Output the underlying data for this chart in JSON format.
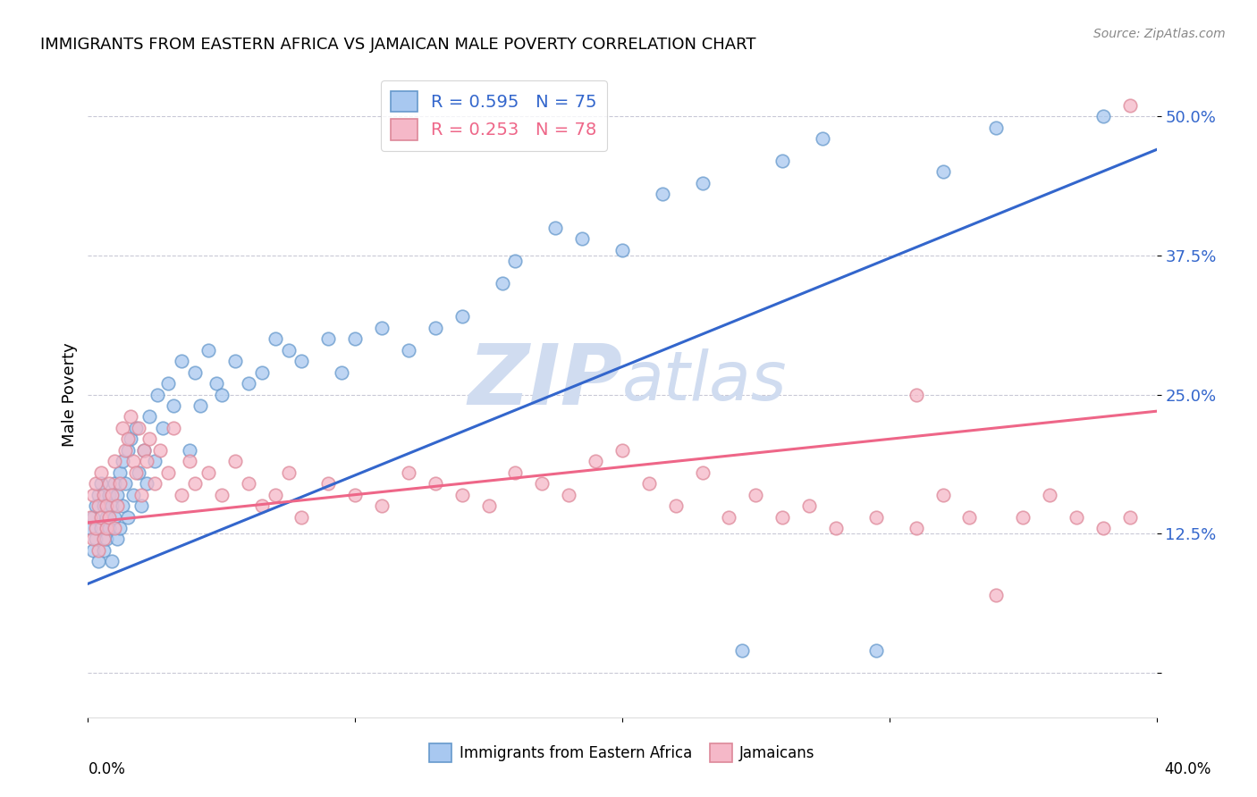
{
  "title": "IMMIGRANTS FROM EASTERN AFRICA VS JAMAICAN MALE POVERTY CORRELATION CHART",
  "source": "Source: ZipAtlas.com",
  "ylabel": "Male Poverty",
  "xlim": [
    0.0,
    0.4
  ],
  "ylim": [
    -0.04,
    0.54
  ],
  "blue_R": 0.595,
  "blue_N": 75,
  "pink_R": 0.253,
  "pink_N": 78,
  "legend1": "Immigrants from Eastern Africa",
  "legend2": "Jamaicans",
  "blue_color": "#A8C8F0",
  "pink_color": "#F5B8C8",
  "blue_edge_color": "#6699CC",
  "pink_edge_color": "#DD8899",
  "blue_line_color": "#3366CC",
  "pink_line_color": "#EE6688",
  "watermark_color": "#D0DCF0",
  "blue_line_x0": 0.0,
  "blue_line_y0": 0.08,
  "blue_line_x1": 0.4,
  "blue_line_y1": 0.47,
  "pink_line_x0": 0.0,
  "pink_line_y0": 0.135,
  "pink_line_x1": 0.4,
  "pink_line_y1": 0.235,
  "yticks": [
    0.0,
    0.125,
    0.25,
    0.375,
    0.5
  ],
  "ytick_labels": [
    "",
    "12.5%",
    "25.0%",
    "37.5%",
    "50.0%"
  ],
  "blue_scatter_x": [
    0.001,
    0.002,
    0.002,
    0.003,
    0.003,
    0.004,
    0.004,
    0.005,
    0.005,
    0.006,
    0.006,
    0.007,
    0.007,
    0.008,
    0.008,
    0.009,
    0.009,
    0.01,
    0.01,
    0.011,
    0.011,
    0.012,
    0.012,
    0.013,
    0.013,
    0.014,
    0.015,
    0.015,
    0.016,
    0.017,
    0.018,
    0.019,
    0.02,
    0.021,
    0.022,
    0.023,
    0.025,
    0.026,
    0.028,
    0.03,
    0.032,
    0.035,
    0.038,
    0.04,
    0.042,
    0.045,
    0.048,
    0.05,
    0.055,
    0.06,
    0.065,
    0.07,
    0.075,
    0.08,
    0.09,
    0.095,
    0.1,
    0.11,
    0.12,
    0.13,
    0.14,
    0.155,
    0.16,
    0.175,
    0.185,
    0.2,
    0.215,
    0.23,
    0.245,
    0.26,
    0.275,
    0.295,
    0.32,
    0.34,
    0.38
  ],
  "blue_scatter_y": [
    0.13,
    0.11,
    0.14,
    0.12,
    0.15,
    0.1,
    0.16,
    0.13,
    0.17,
    0.11,
    0.15,
    0.14,
    0.12,
    0.16,
    0.13,
    0.15,
    0.1,
    0.17,
    0.14,
    0.16,
    0.12,
    0.18,
    0.13,
    0.19,
    0.15,
    0.17,
    0.2,
    0.14,
    0.21,
    0.16,
    0.22,
    0.18,
    0.15,
    0.2,
    0.17,
    0.23,
    0.19,
    0.25,
    0.22,
    0.26,
    0.24,
    0.28,
    0.2,
    0.27,
    0.24,
    0.29,
    0.26,
    0.25,
    0.28,
    0.26,
    0.27,
    0.3,
    0.29,
    0.28,
    0.3,
    0.27,
    0.3,
    0.31,
    0.29,
    0.31,
    0.32,
    0.35,
    0.37,
    0.4,
    0.39,
    0.38,
    0.43,
    0.44,
    0.02,
    0.46,
    0.48,
    0.02,
    0.45,
    0.49,
    0.5
  ],
  "pink_scatter_x": [
    0.001,
    0.002,
    0.002,
    0.003,
    0.003,
    0.004,
    0.004,
    0.005,
    0.005,
    0.006,
    0.006,
    0.007,
    0.007,
    0.008,
    0.008,
    0.009,
    0.01,
    0.01,
    0.011,
    0.012,
    0.013,
    0.014,
    0.015,
    0.016,
    0.017,
    0.018,
    0.019,
    0.02,
    0.021,
    0.022,
    0.023,
    0.025,
    0.027,
    0.03,
    0.032,
    0.035,
    0.038,
    0.04,
    0.045,
    0.05,
    0.055,
    0.06,
    0.065,
    0.07,
    0.075,
    0.08,
    0.09,
    0.1,
    0.11,
    0.12,
    0.13,
    0.14,
    0.15,
    0.16,
    0.17,
    0.18,
    0.19,
    0.2,
    0.21,
    0.22,
    0.23,
    0.24,
    0.25,
    0.26,
    0.27,
    0.28,
    0.295,
    0.31,
    0.32,
    0.33,
    0.34,
    0.35,
    0.36,
    0.37,
    0.38,
    0.39,
    0.31,
    0.39
  ],
  "pink_scatter_y": [
    0.14,
    0.12,
    0.16,
    0.13,
    0.17,
    0.11,
    0.15,
    0.14,
    0.18,
    0.12,
    0.16,
    0.15,
    0.13,
    0.17,
    0.14,
    0.16,
    0.13,
    0.19,
    0.15,
    0.17,
    0.22,
    0.2,
    0.21,
    0.23,
    0.19,
    0.18,
    0.22,
    0.16,
    0.2,
    0.19,
    0.21,
    0.17,
    0.2,
    0.18,
    0.22,
    0.16,
    0.19,
    0.17,
    0.18,
    0.16,
    0.19,
    0.17,
    0.15,
    0.16,
    0.18,
    0.14,
    0.17,
    0.16,
    0.15,
    0.18,
    0.17,
    0.16,
    0.15,
    0.18,
    0.17,
    0.16,
    0.19,
    0.2,
    0.17,
    0.15,
    0.18,
    0.14,
    0.16,
    0.14,
    0.15,
    0.13,
    0.14,
    0.13,
    0.16,
    0.14,
    0.07,
    0.14,
    0.16,
    0.14,
    0.13,
    0.14,
    0.25,
    0.51
  ]
}
